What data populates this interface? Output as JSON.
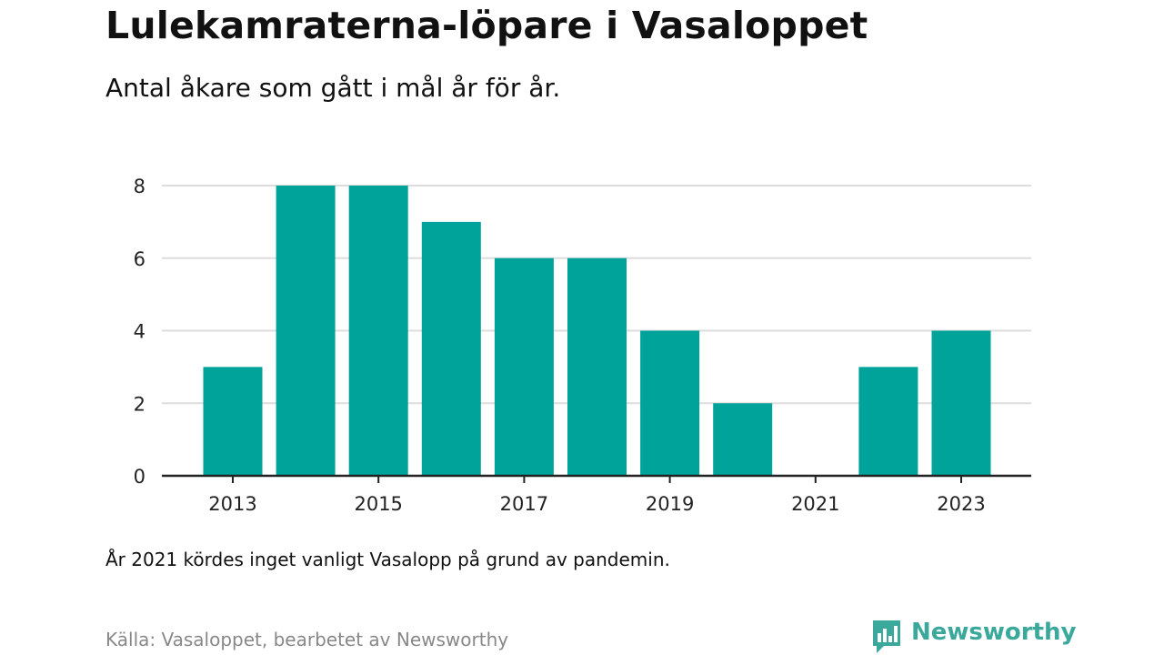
{
  "title": "Lulekamraterna-löpare i Vasaloppet",
  "subtitle": "Antal åkare som gått i mål år för år.",
  "note": "År 2021 kördes inget vanligt Vasalopp på grund av pandemin.",
  "source": "Källa: Vasaloppet, bearbetet av Newsworthy",
  "brand": {
    "name": "Newsworthy",
    "color": "#3aa99c",
    "icon": "newsworthy-logo-icon"
  },
  "colors": {
    "bar": "#00a39a",
    "grid": "#dddddd",
    "axis": "#222222"
  },
  "chart_data": {
    "type": "bar",
    "title": "",
    "xlabel": "",
    "ylabel": "",
    "categories": [
      "2013",
      "2014",
      "2015",
      "2016",
      "2017",
      "2018",
      "2019",
      "2020",
      "2021",
      "2022",
      "2023"
    ],
    "values": [
      3,
      8,
      8,
      7,
      6,
      6,
      4,
      2,
      0,
      3,
      4
    ],
    "x_tick_labels": [
      "2013",
      "2015",
      "2017",
      "2019",
      "2021",
      "2023"
    ],
    "y_ticks": [
      0,
      2,
      4,
      6,
      8
    ],
    "ylim": [
      0,
      8
    ],
    "grid": true,
    "legend": "none"
  }
}
